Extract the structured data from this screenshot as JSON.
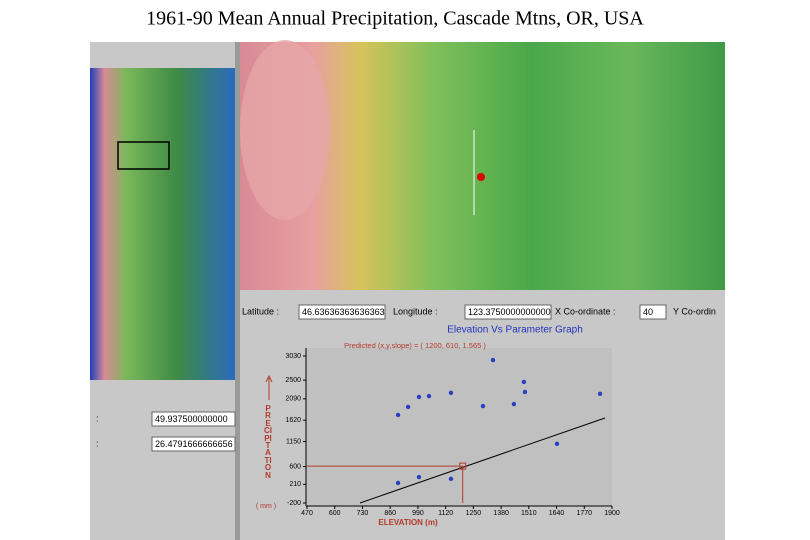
{
  "title": "1961-90 Mean Annual Precipitation, Cascade Mtns, OR, USA",
  "coords": {
    "latitude_label": "Latitude :",
    "latitude": "46.63636363636363",
    "longitude_label": "Longitude :",
    "longitude": "123.3750000000000",
    "x_label": "X Co-ordinate :",
    "x": "40",
    "y_label": "Y Co-ordin"
  },
  "side_fields": [
    {
      "label": ":",
      "value": "49.937500000000"
    },
    {
      "label": ":",
      "value": "26.4791666666656"
    }
  ],
  "graph": {
    "title": "Elevation Vs Parameter Graph",
    "predicted": "Predicted (x,y,slope) = ( 1200, 610, 1.565 )",
    "x_label": "ELEVATION (m)",
    "y_label": "PRECIPITATION",
    "y_unit": "( mm )",
    "xlim": [
      470,
      1900
    ],
    "ylim": [
      -200,
      3030
    ],
    "xticks": [
      470,
      600,
      730,
      860,
      990,
      1120,
      1250,
      1380,
      1510,
      1640,
      1770,
      1900
    ],
    "yticks": [
      -200,
      210,
      600,
      1150,
      1620,
      2090,
      2500,
      3030
    ],
    "points": {
      "x": [
        897,
        944,
        995,
        1042,
        1145,
        1295,
        1342,
        1440,
        1487,
        1492,
        1844,
        1642,
        995,
        897,
        1145
      ],
      "y": [
        1734,
        1910,
        2130,
        2150,
        2220,
        1930,
        2940,
        1975,
        2460,
        2240,
        2200,
        1100,
        370,
        240,
        330
      ]
    },
    "predicted_point": {
      "x": 1200,
      "y": 610
    }
  }
}
